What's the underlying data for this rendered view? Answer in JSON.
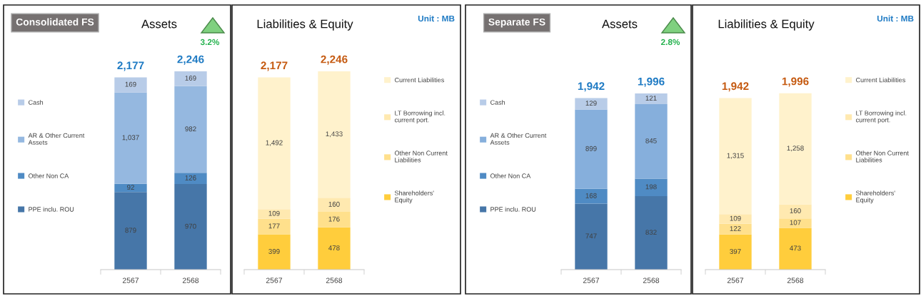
{
  "chart_data": [
    {
      "type": "bar",
      "stacked": true,
      "title": "Assets",
      "categories": [
        "2567",
        "2568"
      ],
      "legend": "left",
      "totals": [
        "2,177",
        "2,246"
      ],
      "annotations": [
        "Consolidated FS",
        "3.2%"
      ],
      "series": [
        {
          "name": "PPE inclu. ROU",
          "color": "#4676a8",
          "values": [
            879,
            970
          ],
          "value_labels": [
            "879",
            "970"
          ]
        },
        {
          "name": "Other Non CA",
          "color": "#4f8bc4",
          "values": [
            92,
            126
          ],
          "value_labels": [
            "92",
            "126"
          ]
        },
        {
          "name": "AR & Other Current Assets",
          "color": "#95b8e0",
          "values": [
            1037,
            982
          ],
          "value_labels": [
            "1,037",
            "982"
          ]
        },
        {
          "name": "Cash",
          "color": "#b8cce8",
          "values": [
            169,
            169
          ],
          "value_labels": [
            "169",
            "169"
          ]
        }
      ]
    },
    {
      "type": "bar",
      "stacked": true,
      "title": "Liabilities & Equity",
      "categories": [
        "2567",
        "2568"
      ],
      "legend": "right",
      "totals": [
        "2,177",
        "2,246"
      ],
      "annotations": [
        "Unit : MB"
      ],
      "series": [
        {
          "name": "Shareholders' Equity",
          "color": "#ffcd3c",
          "values": [
            399,
            478
          ],
          "value_labels": [
            "399",
            "478"
          ]
        },
        {
          "name": "Other Non Current Liabilities",
          "color": "#ffe08c",
          "values": [
            177,
            176
          ],
          "value_labels": [
            "177",
            "176"
          ]
        },
        {
          "name": "LT Borrowing incl. current port.",
          "color": "#ffe9b0",
          "values": [
            109,
            160
          ],
          "value_labels": [
            "109",
            "160"
          ]
        },
        {
          "name": "Current Liabilities",
          "color": "#fff2cc",
          "values": [
            1492,
            1433
          ],
          "value_labels": [
            "1,492",
            "1,433"
          ]
        }
      ]
    },
    {
      "type": "bar",
      "stacked": true,
      "title": "Assets",
      "categories": [
        "2567",
        "2568"
      ],
      "legend": "left",
      "totals": [
        "1,942",
        "1,996"
      ],
      "annotations": [
        "Separate FS",
        "2.8%"
      ],
      "series": [
        {
          "name": "PPE inclu. ROU",
          "color": "#4676a8",
          "values": [
            747,
            832
          ],
          "value_labels": [
            "747",
            "832"
          ]
        },
        {
          "name": "Other Non CA",
          "color": "#4f8bc4",
          "values": [
            168,
            198
          ],
          "value_labels": [
            "168",
            "198"
          ]
        },
        {
          "name": "AR & Other Current Assets",
          "color": "#86afdc",
          "values": [
            899,
            845
          ],
          "value_labels": [
            "899",
            "845"
          ]
        },
        {
          "name": "Cash",
          "color": "#b8cce8",
          "values": [
            129,
            121
          ],
          "value_labels": [
            "129",
            "121"
          ]
        }
      ]
    },
    {
      "type": "bar",
      "stacked": true,
      "title": "Liabilities & Equity",
      "categories": [
        "2567",
        "2568"
      ],
      "legend": "right",
      "totals": [
        "1,942",
        "1,996"
      ],
      "annotations": [
        "Unit : MB"
      ],
      "series": [
        {
          "name": "Shareholders' Equity",
          "color": "#ffcd3c",
          "values": [
            397,
            473
          ],
          "value_labels": [
            "397",
            "473"
          ]
        },
        {
          "name": "Other Non Current Liabilities",
          "color": "#ffe08c",
          "values": [
            122,
            107
          ],
          "value_labels": [
            "122",
            "107"
          ]
        },
        {
          "name": "LT Borrowing incl. current port.",
          "color": "#ffe9b0",
          "values": [
            109,
            160
          ],
          "value_labels": [
            "109",
            "160"
          ]
        },
        {
          "name": "Current Liabilities",
          "color": "#fff2cc",
          "values": [
            1315,
            1258
          ],
          "value_labels": [
            "1,315",
            "1,258"
          ]
        }
      ]
    }
  ]
}
